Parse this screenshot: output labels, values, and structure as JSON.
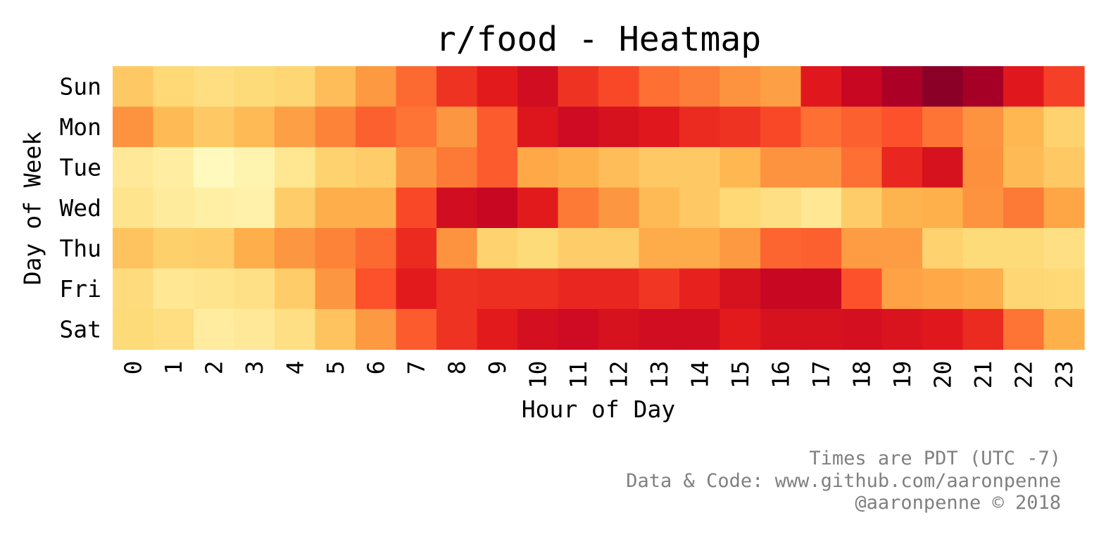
{
  "chart_data": {
    "type": "heatmap",
    "title": "r/food - Heatmap",
    "xlabel": "Hour of Day",
    "ylabel": "Day of Week",
    "x_categories": [
      "0",
      "1",
      "2",
      "3",
      "4",
      "5",
      "6",
      "7",
      "8",
      "9",
      "10",
      "11",
      "12",
      "13",
      "14",
      "15",
      "16",
      "17",
      "18",
      "19",
      "20",
      "21",
      "22",
      "23"
    ],
    "y_categories": [
      "Sun",
      "Mon",
      "Tue",
      "Wed",
      "Thu",
      "Fri",
      "Sat"
    ],
    "colormap": "YlOrRd",
    "colorbar": false,
    "grid": false,
    "values": [
      [
        0.3,
        0.25,
        0.22,
        0.24,
        0.26,
        0.34,
        0.46,
        0.57,
        0.69,
        0.75,
        0.81,
        0.69,
        0.64,
        0.56,
        0.53,
        0.48,
        0.44,
        0.76,
        0.84,
        0.91,
        0.98,
        0.92,
        0.76,
        0.66
      ],
      [
        0.48,
        0.35,
        0.3,
        0.35,
        0.44,
        0.52,
        0.59,
        0.55,
        0.47,
        0.6,
        0.77,
        0.82,
        0.79,
        0.76,
        0.71,
        0.69,
        0.64,
        0.56,
        0.59,
        0.62,
        0.55,
        0.48,
        0.36,
        0.27
      ],
      [
        0.15,
        0.12,
        0.04,
        0.08,
        0.17,
        0.27,
        0.29,
        0.47,
        0.54,
        0.6,
        0.41,
        0.38,
        0.34,
        0.3,
        0.3,
        0.36,
        0.48,
        0.48,
        0.56,
        0.72,
        0.79,
        0.49,
        0.35,
        0.3
      ],
      [
        0.18,
        0.14,
        0.11,
        0.1,
        0.29,
        0.39,
        0.39,
        0.64,
        0.81,
        0.84,
        0.75,
        0.54,
        0.47,
        0.35,
        0.3,
        0.25,
        0.21,
        0.16,
        0.29,
        0.37,
        0.38,
        0.48,
        0.54,
        0.42
      ],
      [
        0.32,
        0.28,
        0.29,
        0.39,
        0.47,
        0.52,
        0.57,
        0.71,
        0.48,
        0.27,
        0.24,
        0.29,
        0.29,
        0.4,
        0.4,
        0.46,
        0.58,
        0.59,
        0.45,
        0.45,
        0.27,
        0.24,
        0.24,
        0.21
      ],
      [
        0.23,
        0.16,
        0.18,
        0.2,
        0.29,
        0.47,
        0.62,
        0.75,
        0.69,
        0.7,
        0.7,
        0.72,
        0.72,
        0.68,
        0.73,
        0.79,
        0.84,
        0.84,
        0.62,
        0.43,
        0.41,
        0.39,
        0.26,
        0.25
      ],
      [
        0.24,
        0.22,
        0.13,
        0.15,
        0.21,
        0.32,
        0.46,
        0.6,
        0.69,
        0.75,
        0.8,
        0.82,
        0.79,
        0.81,
        0.81,
        0.75,
        0.79,
        0.79,
        0.8,
        0.78,
        0.76,
        0.71,
        0.55,
        0.38
      ]
    ]
  },
  "footer": {
    "line1": "Times are PDT (UTC -7)",
    "line2": "Data & Code: www.github.com/aaronpenne",
    "line3": "@aaronpenne © 2018"
  }
}
